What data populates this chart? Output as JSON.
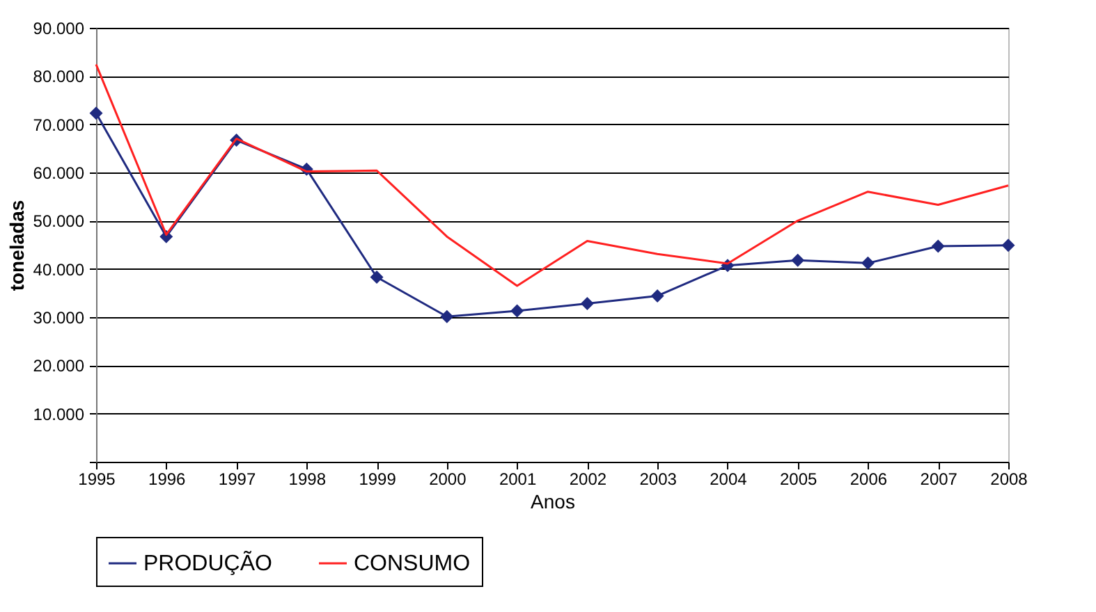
{
  "chart_data": {
    "type": "line",
    "xlabel": "Anos",
    "ylabel": "toneladas",
    "categories": [
      "1995",
      "1996",
      "1997",
      "1998",
      "1999",
      "2000",
      "2001",
      "2002",
      "2003",
      "2004",
      "2005",
      "2006",
      "2007",
      "2008"
    ],
    "series": [
      {
        "name": "PRODUÇÃO",
        "color": "#1f2a80",
        "marker": "diamond",
        "values": [
          72300,
          46700,
          66700,
          60700,
          38300,
          30100,
          31300,
          32800,
          34400,
          40700,
          41800,
          41200,
          44700,
          44900
        ]
      },
      {
        "name": "CONSUMO",
        "color": "#ff2020",
        "marker": "none",
        "values": [
          82400,
          47100,
          67000,
          60200,
          60400,
          46700,
          36500,
          45800,
          43100,
          41100,
          50000,
          56000,
          53300,
          57300
        ]
      }
    ],
    "ylim": [
      0,
      90000
    ],
    "yticks": [
      {
        "value": 0,
        "label": null
      },
      {
        "value": 10000,
        "label": "10.000"
      },
      {
        "value": 20000,
        "label": "20.000"
      },
      {
        "value": 30000,
        "label": "30.000"
      },
      {
        "value": 40000,
        "label": "40.000"
      },
      {
        "value": 50000,
        "label": "50.000"
      },
      {
        "value": 60000,
        "label": "60.000"
      },
      {
        "value": 70000,
        "label": "70.000"
      },
      {
        "value": 80000,
        "label": "80.000"
      },
      {
        "value": 90000,
        "label": "90.000"
      }
    ],
    "grid": "y",
    "legend": "bottom"
  }
}
